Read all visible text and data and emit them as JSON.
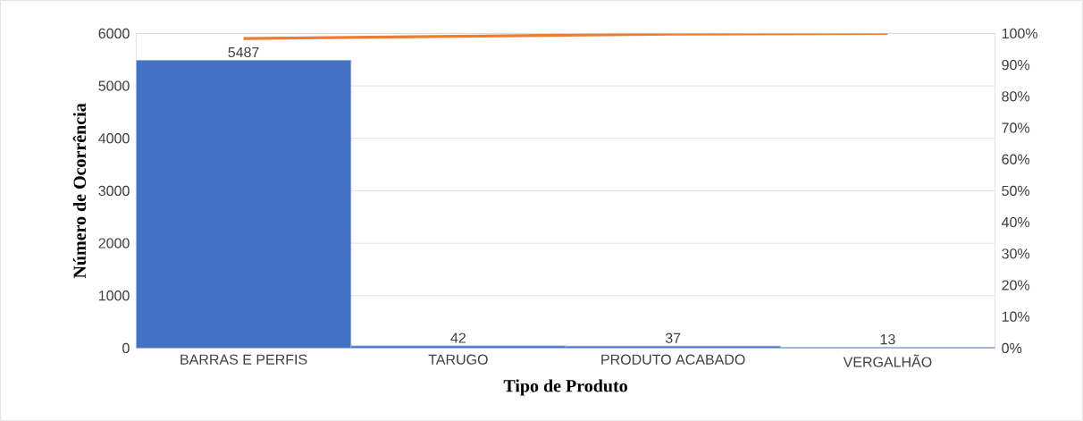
{
  "chart_data": {
    "type": "bar",
    "xlabel": "Tipo de Produto",
    "ylabel": "Número de Ocorrência",
    "categories": [
      "BARRAS E PERFIS",
      "TARUGO",
      "PRODUTO ACABADO",
      "VERGALHÃO"
    ],
    "series": [
      {
        "color": "#4472c4",
        "values": [
          5487,
          42,
          37,
          13
        ],
        "value_labels": [
          "5487",
          "42",
          "37",
          "13"
        ]
      },
      {
        "type": "line",
        "axis": "y2",
        "color": "#ed7d31",
        "values": [
          98.4,
          99.1,
          99.8,
          100
        ]
      }
    ],
    "ylim": [
      0,
      6000
    ],
    "yticks": [
      0,
      1000,
      2000,
      3000,
      4000,
      5000,
      6000
    ],
    "y2lim": [
      0,
      100
    ],
    "y2ticks": [
      {
        "value": 0,
        "label": "0%"
      },
      {
        "value": 10,
        "label": "10%"
      },
      {
        "value": 20,
        "label": "20%"
      },
      {
        "value": 30,
        "label": "30%"
      },
      {
        "value": 40,
        "label": "40%"
      },
      {
        "value": 50,
        "label": "50%"
      },
      {
        "value": 60,
        "label": "60%"
      },
      {
        "value": 70,
        "label": "70%"
      },
      {
        "value": 80,
        "label": "80%"
      },
      {
        "value": 90,
        "label": "90%"
      },
      {
        "value": 100,
        "label": "100%"
      }
    ],
    "grid": "y"
  }
}
